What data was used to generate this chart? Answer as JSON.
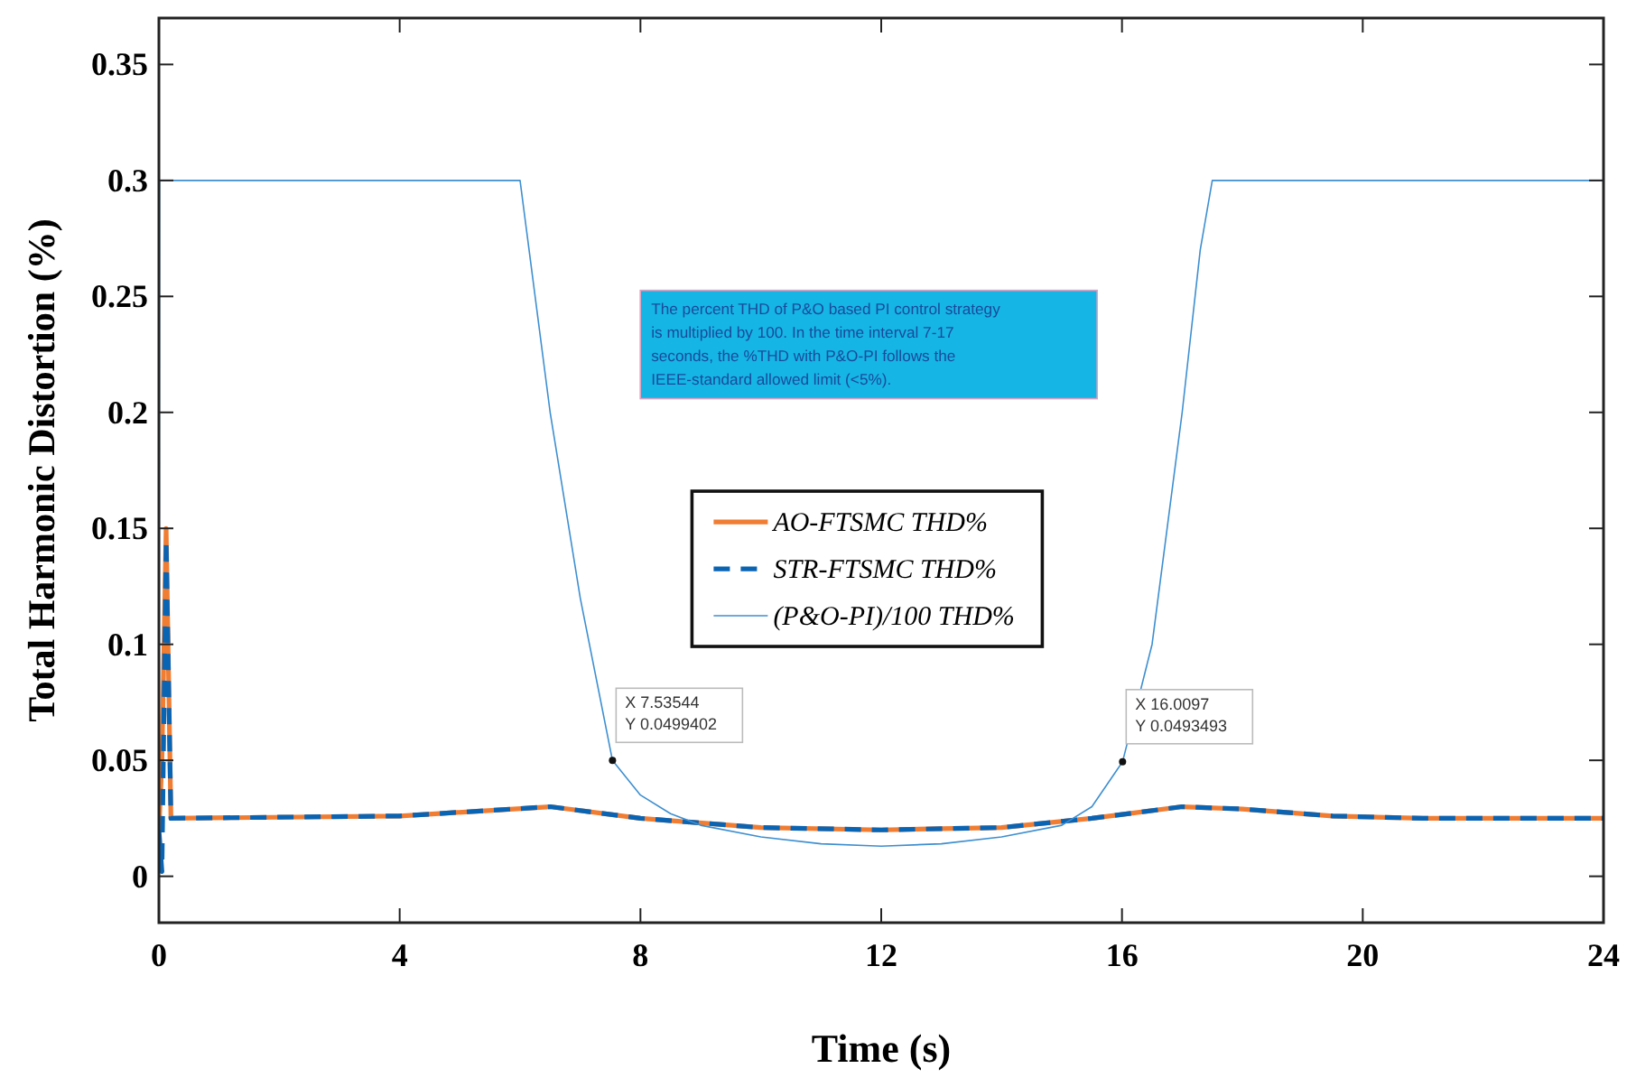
{
  "chart_data": {
    "type": "line",
    "xlabel": "Time (s)",
    "ylabel": "Total Harmonic Distortion (%)",
    "xlim": [
      0,
      24
    ],
    "ylim": [
      -0.02,
      0.37
    ],
    "xticks": [
      0,
      4,
      8,
      12,
      16,
      20,
      24
    ],
    "yticks": [
      0,
      0.05,
      0.1,
      0.15,
      0.2,
      0.25,
      0.3,
      0.35
    ],
    "grid": false,
    "legend": "center",
    "marker": "none",
    "series": [
      {
        "name": "AO-FTSMC THD%",
        "color": "#f07d32",
        "line_style": "solid",
        "x": [
          0,
          0.05,
          0.12,
          0.2,
          4,
          6.5,
          8,
          10,
          12,
          14,
          15.5,
          17,
          18,
          19.5,
          21,
          24
        ],
        "values": [
          0.02,
          0.05,
          0.15,
          0.025,
          0.026,
          0.03,
          0.025,
          0.021,
          0.02,
          0.021,
          0.025,
          0.03,
          0.029,
          0.026,
          0.025,
          0.025
        ]
      },
      {
        "name": "STR-FTSMC THD%",
        "color": "#0a64b4",
        "line_style": "dashed",
        "x": [
          0,
          0.05,
          0.12,
          0.2,
          4,
          6.5,
          8,
          10,
          12,
          14,
          15.5,
          17,
          18,
          19.5,
          21,
          24
        ],
        "values": [
          0.02,
          0.002,
          0.145,
          0.025,
          0.026,
          0.03,
          0.025,
          0.021,
          0.02,
          0.021,
          0.025,
          0.03,
          0.029,
          0.026,
          0.025,
          0.025
        ]
      },
      {
        "name": "(P&O-PI)/100 THD%",
        "color": "#3e8fd0",
        "line_style": "solid",
        "x": [
          0,
          0.01,
          6.0,
          6.1,
          6.5,
          7.0,
          7.53544,
          8,
          8.5,
          9,
          10,
          11,
          12,
          13,
          14,
          15,
          15.5,
          16.0097,
          16.5,
          17,
          17.3,
          17.5,
          24
        ],
        "values": [
          0,
          0.3,
          0.3,
          0.28,
          0.2,
          0.12,
          0.0499402,
          0.035,
          0.027,
          0.022,
          0.017,
          0.014,
          0.013,
          0.014,
          0.017,
          0.022,
          0.03,
          0.0493493,
          0.1,
          0.2,
          0.27,
          0.3,
          0.3
        ]
      }
    ],
    "annotations": [
      "The percent THD of P&O based PI control strategy is multiplied by 100. In the time interval 7-17 seconds, the %THD with P&O-PI  follows the IEEE-standard allowed limit (<5%).",
      {
        "text": "X 7.53544\nY 0.0499402",
        "x": 7.53544,
        "y": 0.0499402
      },
      {
        "text": "X 16.0097\nY 0.0493493",
        "x": 16.0097,
        "y": 0.0493493
      }
    ]
  }
}
